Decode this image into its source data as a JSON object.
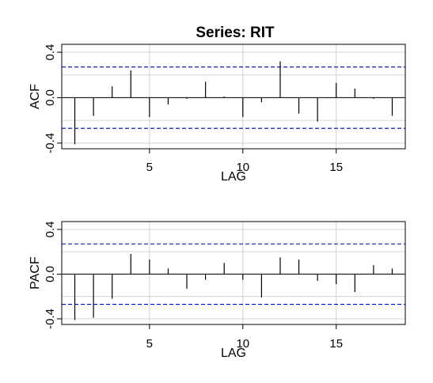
{
  "title": "Series:  RIT",
  "chart_data": [
    {
      "type": "bar",
      "panel": "ACF",
      "xlabel": "LAG",
      "ylabel": "ACF",
      "x_ticks": [
        5,
        10,
        15
      ],
      "y_ticks": [
        "-0.4",
        "0.0",
        "0.4"
      ],
      "y_tick_values": [
        -0.4,
        0.0,
        0.4
      ],
      "xlim": [
        0.3,
        18.7
      ],
      "ylim": [
        -0.45,
        0.47
      ],
      "grid": true,
      "confidence_bound": 0.27,
      "lags": [
        1,
        2,
        3,
        4,
        5,
        6,
        7,
        8,
        9,
        10,
        11,
        12,
        13,
        14,
        15,
        16,
        17,
        18
      ],
      "values": [
        -0.41,
        -0.16,
        0.1,
        0.24,
        -0.17,
        -0.06,
        -0.01,
        0.14,
        0.01,
        -0.17,
        -0.04,
        0.32,
        -0.14,
        -0.21,
        0.13,
        0.08,
        -0.01,
        -0.16
      ]
    },
    {
      "type": "bar",
      "panel": "PACF",
      "xlabel": "LAG",
      "ylabel": "PACF",
      "x_ticks": [
        5,
        10,
        15
      ],
      "y_ticks": [
        "-0.4",
        "0.0",
        "0.4"
      ],
      "y_tick_values": [
        -0.4,
        0.0,
        0.4
      ],
      "xlim": [
        0.3,
        18.7
      ],
      "ylim": [
        -0.45,
        0.47
      ],
      "grid": true,
      "confidence_bound": 0.27,
      "lags": [
        1,
        2,
        3,
        4,
        5,
        6,
        7,
        8,
        9,
        10,
        11,
        12,
        13,
        14,
        15,
        16,
        17,
        18
      ],
      "values": [
        -0.41,
        -0.39,
        -0.22,
        0.18,
        0.13,
        0.05,
        -0.13,
        -0.05,
        0.1,
        -0.05,
        -0.21,
        0.15,
        0.13,
        -0.06,
        -0.09,
        -0.16,
        0.08,
        0.05
      ]
    }
  ]
}
